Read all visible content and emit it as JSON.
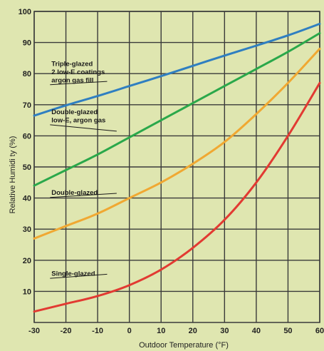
{
  "chart_data": {
    "type": "line",
    "xlabel": "Outdoor Temperature (°F)",
    "ylabel": "Relative Humidi ty (%)",
    "xlim": [
      -30,
      60
    ],
    "ylim": [
      0,
      100
    ],
    "xticks": [
      "-30",
      "-20",
      "-10",
      "0",
      "10",
      "20",
      "30",
      "40",
      "50",
      "60"
    ],
    "yticks": [
      "10",
      "20",
      "30",
      "40",
      "50",
      "60",
      "70",
      "80",
      "90",
      "100"
    ],
    "grid": true,
    "background_color": "#dfe6b0",
    "series": [
      {
        "color": "#2f7fc1",
        "points": [
          [
            -30,
            66.5
          ],
          [
            -20,
            69.8
          ],
          [
            -10,
            72.8
          ],
          [
            0,
            76
          ],
          [
            10,
            79.2
          ],
          [
            20,
            82.5
          ],
          [
            30,
            85.8
          ],
          [
            40,
            89
          ],
          [
            50,
            92.3
          ],
          [
            60,
            96
          ]
        ]
      },
      {
        "color": "#2aa84a",
        "points": [
          [
            -30,
            44
          ],
          [
            -20,
            49
          ],
          [
            -10,
            54
          ],
          [
            0,
            59.5
          ],
          [
            10,
            65
          ],
          [
            20,
            70.5
          ],
          [
            30,
            76
          ],
          [
            40,
            81.5
          ],
          [
            50,
            87
          ],
          [
            60,
            93
          ]
        ]
      },
      {
        "color": "#f0a832",
        "points": [
          [
            -30,
            27
          ],
          [
            -20,
            31
          ],
          [
            -10,
            35
          ],
          [
            0,
            40
          ],
          [
            10,
            45
          ],
          [
            20,
            51
          ],
          [
            30,
            58
          ],
          [
            40,
            67
          ],
          [
            50,
            77
          ],
          [
            60,
            88
          ]
        ]
      },
      {
        "color": "#e23a32",
        "points": [
          [
            -30,
            3.5
          ],
          [
            -20,
            6
          ],
          [
            -10,
            8.5
          ],
          [
            0,
            12
          ],
          [
            10,
            17
          ],
          [
            20,
            24
          ],
          [
            30,
            33
          ],
          [
            40,
            45
          ],
          [
            50,
            60
          ],
          [
            60,
            77
          ]
        ]
      }
    ],
    "annotations": [
      {
        "lines": [
          "Triple-glazed",
          "2 low-E coatings",
          "argon gas fill"
        ],
        "anchor": [
          -25,
          82.5
        ],
        "leader": [
          -7,
          77.5
        ]
      },
      {
        "lines": [
          "Double-glazed",
          "low-E, argon gas"
        ],
        "anchor": [
          -25,
          67
        ],
        "leader": [
          -4,
          61.5
        ]
      },
      {
        "lines": [
          "Double-glazed"
        ],
        "anchor": [
          -25,
          41
        ],
        "leader": [
          -4,
          41.5
        ]
      },
      {
        "lines": [
          "Single-glazed"
        ],
        "anchor": [
          -25,
          15
        ],
        "leader": [
          -7,
          15.5
        ]
      }
    ]
  }
}
